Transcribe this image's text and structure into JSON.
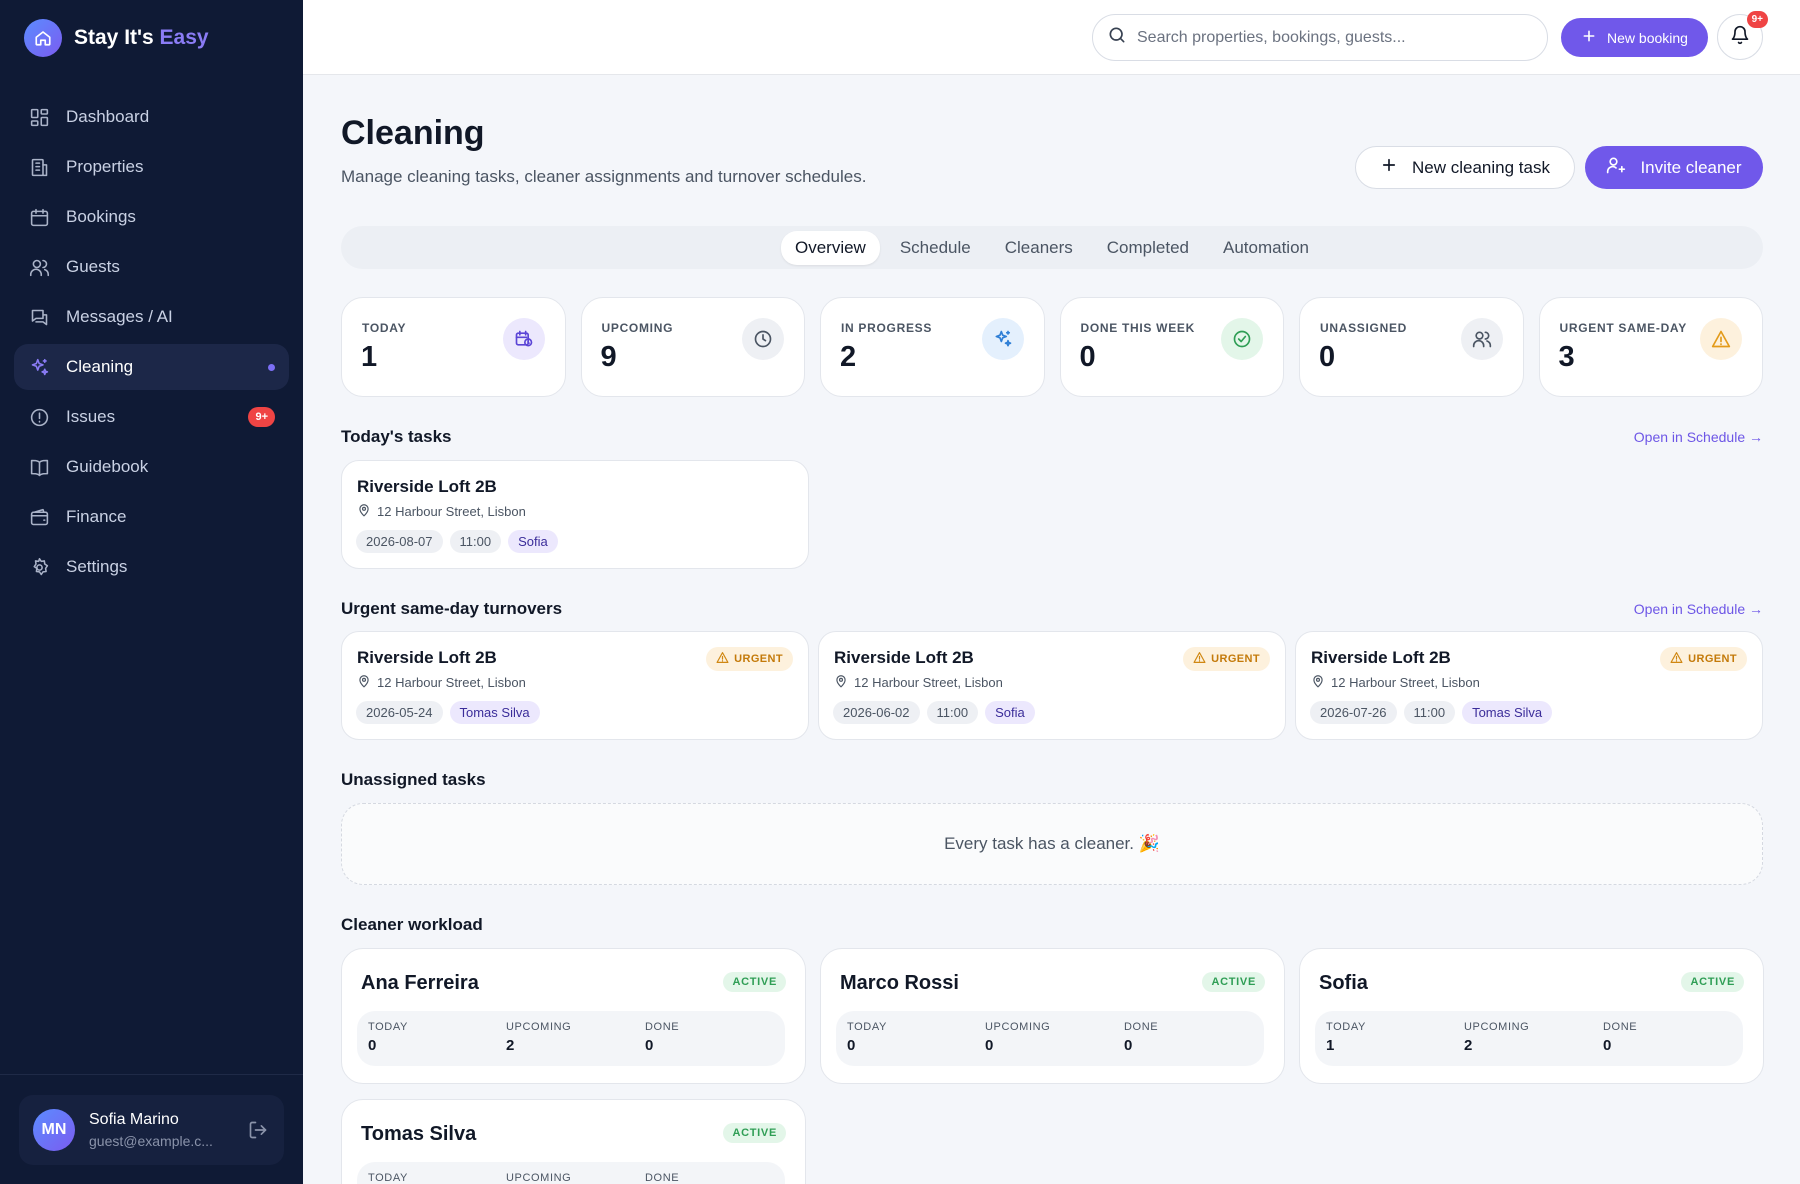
{
  "brand": {
    "name_a": "Stay It's ",
    "name_b": "Easy"
  },
  "nav": [
    {
      "label": "Dashboard",
      "icon": "dashboard-icon"
    },
    {
      "label": "Properties",
      "icon": "building-icon"
    },
    {
      "label": "Bookings",
      "icon": "calendar-icon"
    },
    {
      "label": "Guests",
      "icon": "users-icon"
    },
    {
      "label": "Messages / AI",
      "icon": "messages-icon"
    },
    {
      "label": "Cleaning",
      "icon": "sparkles-icon",
      "active": true
    },
    {
      "label": "Issues",
      "icon": "alert-circle-icon",
      "badge": "9+"
    },
    {
      "label": "Guidebook",
      "icon": "book-icon"
    },
    {
      "label": "Finance",
      "icon": "wallet-icon"
    },
    {
      "label": "Settings",
      "icon": "gear-icon"
    }
  ],
  "user": {
    "initials": "MN",
    "name": "Sofia Marino",
    "email": "guest@example.c..."
  },
  "topbar": {
    "search_placeholder": "Search properties, bookings, guests...",
    "new_booking": "New booking",
    "notif_badge": "9+"
  },
  "page": {
    "title": "Cleaning",
    "subtitle": "Manage cleaning tasks, cleaner assignments and turnover schedules.",
    "new_task": "New cleaning task",
    "invite": "Invite cleaner"
  },
  "tabs": [
    "Overview",
    "Schedule",
    "Cleaners",
    "Completed",
    "Automation"
  ],
  "stats": [
    {
      "label": "TODAY",
      "value": "1",
      "icon": "calendar-clock-icon",
      "bg": "#ece8fd",
      "fg": "#5b45d6"
    },
    {
      "label": "UPCOMING",
      "value": "9",
      "icon": "clock-icon",
      "bg": "#eef0f4",
      "fg": "#4b5563"
    },
    {
      "label": "IN PROGRESS",
      "value": "2",
      "icon": "sparkles-icon",
      "bg": "#e4f0fd",
      "fg": "#2f7fd6"
    },
    {
      "label": "DONE THIS WEEK",
      "value": "0",
      "icon": "check-circle-icon",
      "bg": "#e3f6e9",
      "fg": "#2f9e55"
    },
    {
      "label": "UNASSIGNED",
      "value": "0",
      "icon": "users-icon",
      "bg": "#eef0f4",
      "fg": "#4b5563"
    },
    {
      "label": "URGENT SAME-DAY",
      "value": "3",
      "icon": "warning-icon",
      "bg": "#fdf1dd",
      "fg": "#e39b1a"
    }
  ],
  "sections": {
    "today": "Today's tasks",
    "urgent": "Urgent same-day turnovers",
    "unassigned": "Unassigned tasks",
    "workload": "Cleaner workload",
    "open_link": "Open in Schedule →"
  },
  "today_tasks": [
    {
      "name": "Riverside Loft 2B",
      "address": "12 Harbour Street, Lisbon",
      "date": "2026-08-07",
      "time": "11:00",
      "cleaner": "Sofia"
    }
  ],
  "urgent_tasks": [
    {
      "name": "Riverside Loft 2B",
      "address": "12 Harbour Street, Lisbon",
      "date": "2026-05-24",
      "time": "",
      "cleaner": "Tomas Silva",
      "badge": "URGENT"
    },
    {
      "name": "Riverside Loft 2B",
      "address": "12 Harbour Street, Lisbon",
      "date": "2026-06-02",
      "time": "11:00",
      "cleaner": "Sofia",
      "badge": "URGENT"
    },
    {
      "name": "Riverside Loft 2B",
      "address": "12 Harbour Street, Lisbon",
      "date": "2026-07-26",
      "time": "11:00",
      "cleaner": "Tomas Silva",
      "badge": "URGENT"
    }
  ],
  "unassigned_empty": "Every task has a cleaner. 🎉",
  "workload_labels": {
    "today": "TODAY",
    "upcoming": "UPCOMING",
    "done": "DONE",
    "status": "ACTIVE"
  },
  "workload": [
    {
      "name": "Ana Ferreira",
      "today": "0",
      "upcoming": "2",
      "done": "0"
    },
    {
      "name": "Marco Rossi",
      "today": "0",
      "upcoming": "0",
      "done": "0"
    },
    {
      "name": "Sofia",
      "today": "1",
      "upcoming": "2",
      "done": "0"
    },
    {
      "name": "Tomas Silva",
      "today": "",
      "upcoming": "",
      "done": ""
    }
  ]
}
